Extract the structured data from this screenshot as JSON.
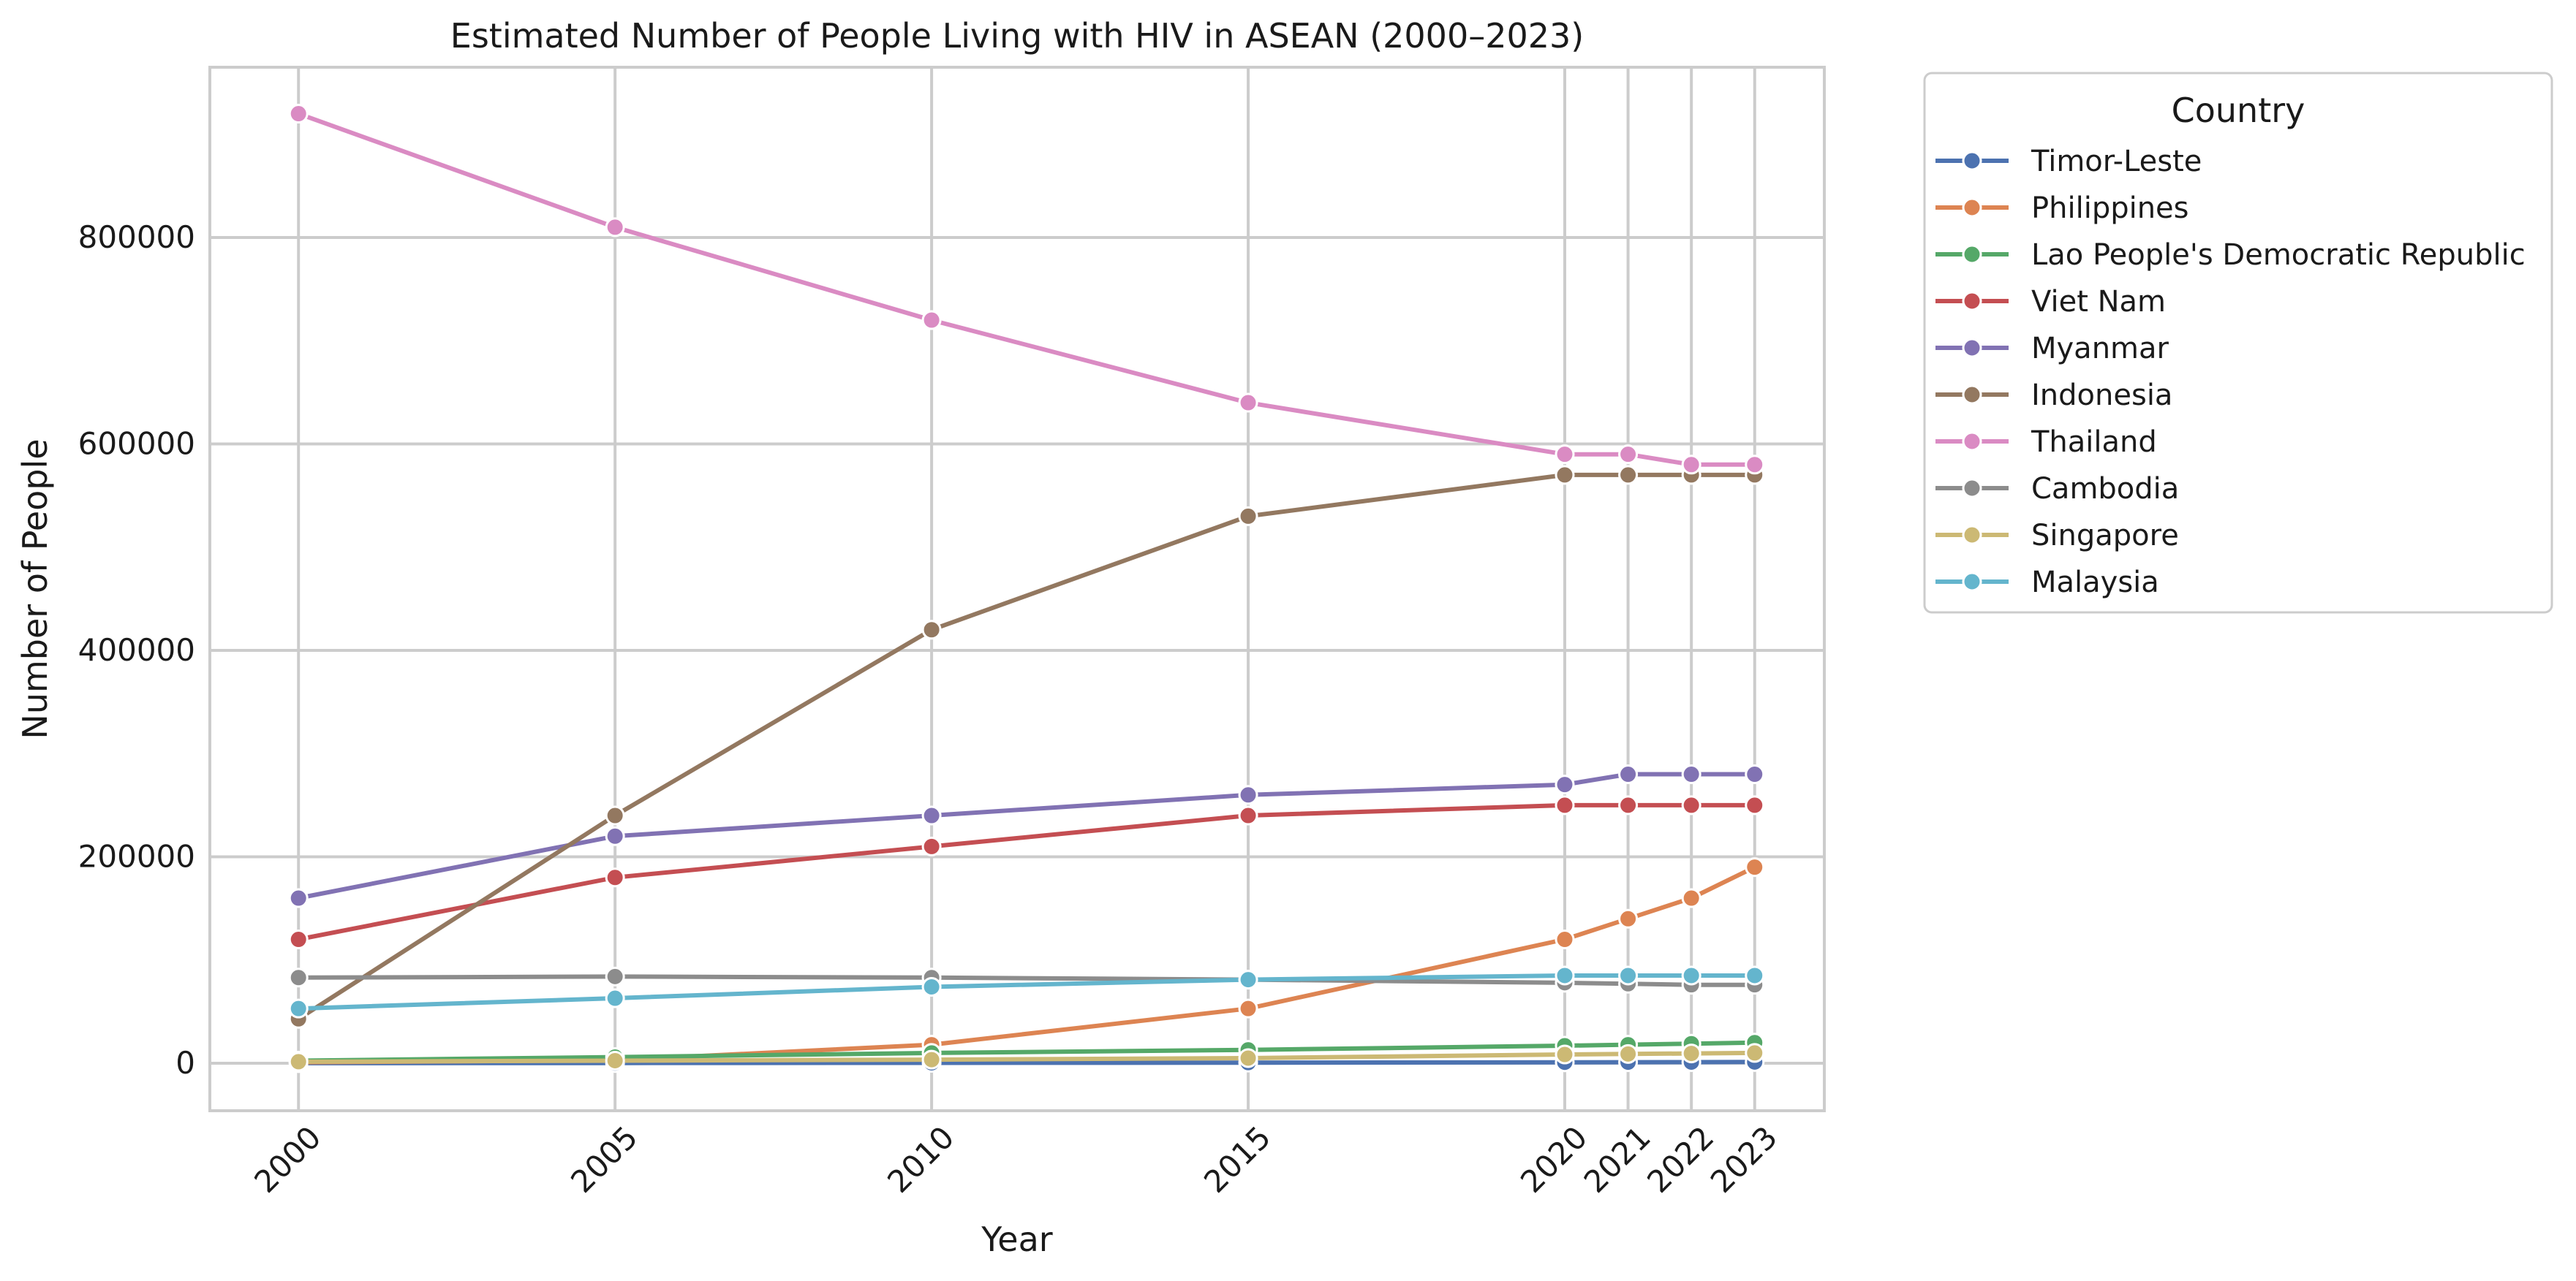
{
  "chart_data": {
    "type": "line",
    "title": "Estimated Number of People Living with HIV in ASEAN (2000–2023)",
    "xlabel": "Year",
    "ylabel": "Number of People",
    "x": [
      2000,
      2005,
      2010,
      2015,
      2020,
      2021,
      2022,
      2023
    ],
    "x_tick_labels": [
      "2000",
      "2005",
      "2010",
      "2015",
      "2020",
      "2021",
      "2022",
      "2023"
    ],
    "x_tick_rotation_deg": 45,
    "xlim": [
      1998.6,
      2024.1
    ],
    "ylim": [
      -46000,
      965000
    ],
    "y_ticks": [
      0,
      200000,
      400000,
      600000,
      800000
    ],
    "y_tick_labels": [
      "0",
      "200000",
      "400000",
      "600000",
      "800000"
    ],
    "grid": true,
    "legend": {
      "title": "Country",
      "placement": "outside-upper-right"
    },
    "series": [
      {
        "name": "Timor-Leste",
        "color": "#4c72b0",
        "values": [
          100,
          200,
          400,
          600,
          900,
          1000,
          1100,
          1200
        ]
      },
      {
        "name": "Philippines",
        "color": "#dd8452",
        "values": [
          900,
          3000,
          18000,
          53000,
          120000,
          140000,
          160000,
          190000
        ]
      },
      {
        "name": "Lao People's Democratic Republic",
        "color": "#55a868",
        "values": [
          2500,
          6000,
          10000,
          13000,
          17000,
          18000,
          19000,
          20000
        ]
      },
      {
        "name": "Viet Nam",
        "color": "#c44e52",
        "values": [
          120000,
          180000,
          210000,
          240000,
          250000,
          250000,
          250000,
          250000
        ]
      },
      {
        "name": "Myanmar",
        "color": "#8172b3",
        "values": [
          160000,
          220000,
          240000,
          260000,
          270000,
          280000,
          280000,
          280000
        ]
      },
      {
        "name": "Indonesia",
        "color": "#937860",
        "values": [
          43000,
          240000,
          420000,
          530000,
          570000,
          570000,
          570000,
          570000
        ]
      },
      {
        "name": "Thailand",
        "color": "#da8bc3",
        "values": [
          920000,
          810000,
          720000,
          640000,
          590000,
          590000,
          580000,
          580000
        ]
      },
      {
        "name": "Cambodia",
        "color": "#8c8c8c",
        "values": [
          83000,
          84000,
          83000,
          81000,
          78000,
          77000,
          76000,
          76000
        ]
      },
      {
        "name": "Singapore",
        "color": "#ccb974",
        "values": [
          1500,
          2500,
          3500,
          5000,
          8500,
          9000,
          9500,
          10000
        ]
      },
      {
        "name": "Malaysia",
        "color": "#64b5cd",
        "values": [
          53000,
          63000,
          74000,
          81000,
          85000,
          85000,
          85000,
          85000
        ]
      }
    ]
  }
}
